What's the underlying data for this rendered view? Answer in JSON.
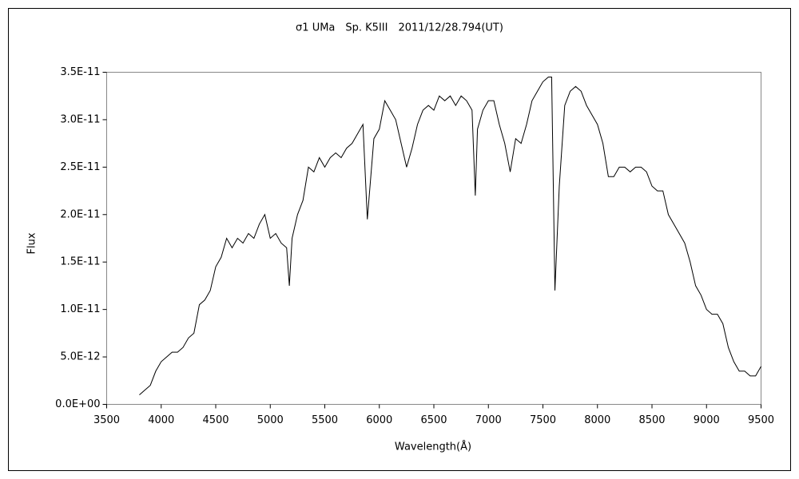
{
  "chart_data": {
    "type": "line",
    "title": "σ1 UMa　Sp. K5III　2011/12/28.794(UT)",
    "x_label": "Wavelength(Å)",
    "y_label": "Flux",
    "xlim": [
      3500,
      9500
    ],
    "xticks": [
      3500,
      4000,
      4500,
      5000,
      5500,
      6000,
      6500,
      7000,
      7500,
      8000,
      8500,
      9000,
      9500
    ],
    "ylim": [
      0,
      3.5e-11
    ],
    "yticks": [
      {
        "value": 0,
        "label": "0.0E+00"
      },
      {
        "value": 5e-12,
        "label": "5.0E-12"
      },
      {
        "value": 1e-11,
        "label": "1.0E-11"
      },
      {
        "value": 1.5e-11,
        "label": "1.5E-11"
      },
      {
        "value": 2e-11,
        "label": "2.0E-11"
      },
      {
        "value": 2.5e-11,
        "label": "2.5E-11"
      },
      {
        "value": 3e-11,
        "label": "3.0E-11"
      },
      {
        "value": 3.5e-11,
        "label": "3.5E-11"
      }
    ],
    "grid": false,
    "series": [
      {
        "name": "Flux",
        "color": "#000000",
        "x": [
          3800,
          3850,
          3900,
          3950,
          4000,
          4050,
          4100,
          4150,
          4200,
          4250,
          4300,
          4350,
          4400,
          4450,
          4500,
          4550,
          4600,
          4650,
          4700,
          4750,
          4800,
          4850,
          4900,
          4950,
          5000,
          5050,
          5100,
          5150,
          5175,
          5200,
          5250,
          5300,
          5350,
          5400,
          5450,
          5500,
          5550,
          5600,
          5650,
          5700,
          5750,
          5800,
          5850,
          5890,
          5950,
          6000,
          6050,
          6100,
          6150,
          6200,
          6250,
          6300,
          6350,
          6400,
          6450,
          6500,
          6550,
          6600,
          6650,
          6700,
          6750,
          6800,
          6850,
          6880,
          6900,
          6950,
          7000,
          7050,
          7100,
          7150,
          7200,
          7250,
          7300,
          7350,
          7400,
          7450,
          7500,
          7550,
          7580,
          7610,
          7650,
          7700,
          7750,
          7800,
          7850,
          7900,
          7950,
          8000,
          8050,
          8100,
          8150,
          8200,
          8250,
          8300,
          8350,
          8400,
          8450,
          8500,
          8550,
          8600,
          8650,
          8700,
          8750,
          8800,
          8850,
          8900,
          8950,
          9000,
          9050,
          9100,
          9150,
          9200,
          9250,
          9300,
          9350,
          9400,
          9450,
          9500
        ],
        "values": [
          1e-12,
          1.5e-12,
          2e-12,
          3.5e-12,
          4.5e-12,
          5e-12,
          5.5e-12,
          5.5e-12,
          6e-12,
          7e-12,
          7.5e-12,
          1.05e-11,
          1.1e-11,
          1.2e-11,
          1.45e-11,
          1.55e-11,
          1.75e-11,
          1.65e-11,
          1.75e-11,
          1.7e-11,
          1.8e-11,
          1.75e-11,
          1.9e-11,
          2e-11,
          1.75e-11,
          1.8e-11,
          1.7e-11,
          1.65e-11,
          1.25e-11,
          1.75e-11,
          2e-11,
          2.15e-11,
          2.5e-11,
          2.45e-11,
          2.6e-11,
          2.5e-11,
          2.6e-11,
          2.65e-11,
          2.6e-11,
          2.7e-11,
          2.75e-11,
          2.85e-11,
          2.95e-11,
          1.95e-11,
          2.8e-11,
          2.9e-11,
          3.2e-11,
          3.1e-11,
          3e-11,
          2.75e-11,
          2.5e-11,
          2.7e-11,
          2.95e-11,
          3.1e-11,
          3.15e-11,
          3.1e-11,
          3.25e-11,
          3.2e-11,
          3.25e-11,
          3.15e-11,
          3.25e-11,
          3.2e-11,
          3.1e-11,
          2.2e-11,
          2.9e-11,
          3.1e-11,
          3.2e-11,
          3.2e-11,
          2.95e-11,
          2.75e-11,
          2.45e-11,
          2.8e-11,
          2.75e-11,
          2.95e-11,
          3.2e-11,
          3.3e-11,
          3.4e-11,
          3.45e-11,
          3.45e-11,
          1.2e-11,
          2.3e-11,
          3.15e-11,
          3.3e-11,
          3.35e-11,
          3.3e-11,
          3.15e-11,
          3.05e-11,
          2.95e-11,
          2.75e-11,
          2.4e-11,
          2.4e-11,
          2.5e-11,
          2.5e-11,
          2.45e-11,
          2.5e-11,
          2.5e-11,
          2.45e-11,
          2.3e-11,
          2.25e-11,
          2.25e-11,
          2e-11,
          1.9e-11,
          1.8e-11,
          1.7e-11,
          1.5e-11,
          1.25e-11,
          1.15e-11,
          1e-11,
          9.5e-12,
          9.5e-12,
          8.5e-12,
          6e-12,
          4.5e-12,
          3.5e-12,
          3.5e-12,
          3e-12,
          3e-12,
          4e-12
        ]
      }
    ]
  }
}
